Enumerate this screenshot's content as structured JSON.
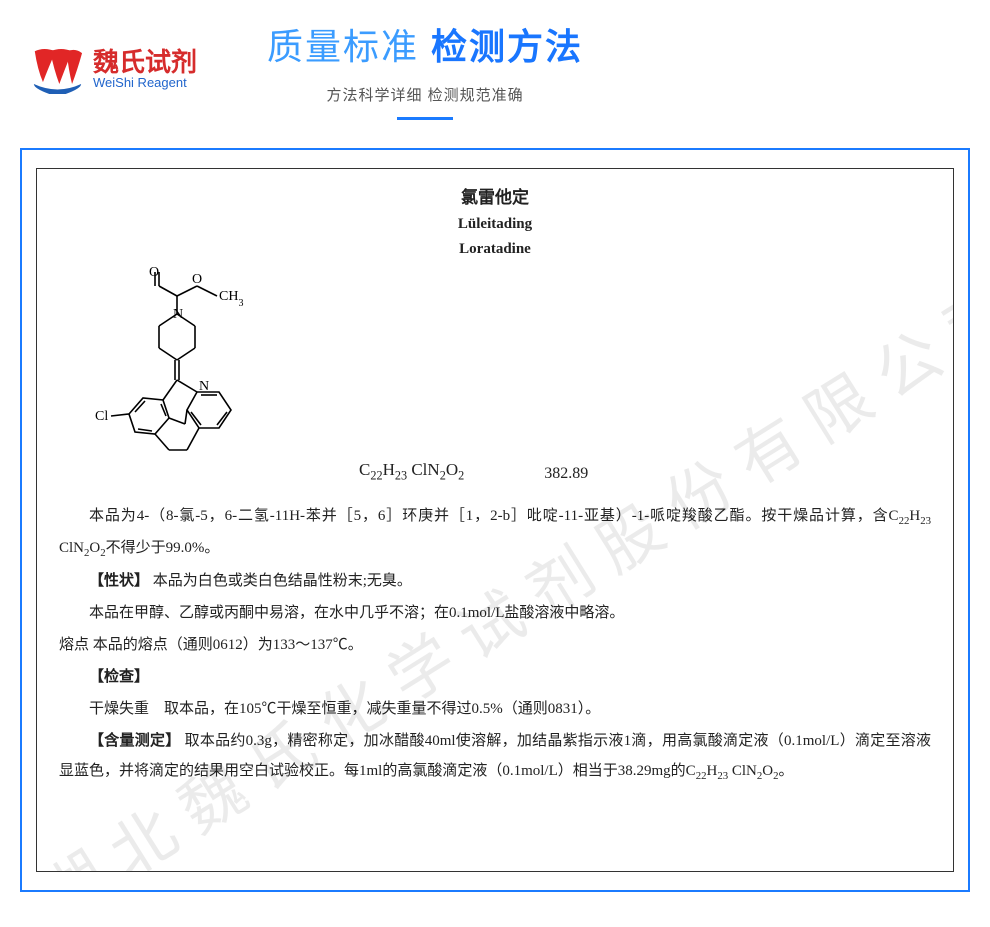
{
  "logo": {
    "cn": "魏氏试剂",
    "en": "WeiShi Reagent",
    "icon_colors": {
      "red": "#e12626",
      "blue": "#1f5fb5"
    }
  },
  "header": {
    "title_light": "质量标准",
    "title_bold": "检测方法",
    "subtitle": "方法科学详细 检测规范准确",
    "underline_color": "#1b7bff"
  },
  "frame": {
    "border_color": "#1b7bff",
    "inner_border_color": "#333333",
    "background": "#ffffff"
  },
  "watermark": "湖北魏氏化学试剂股份有限公司",
  "document": {
    "title_cn": "氯雷他定",
    "title_py": "Lüleitading",
    "title_en": "Loratadine",
    "formula_html": "C<sub>22</sub>H<sub>23</sub> ClN<sub>2</sub>O<sub>2</sub>",
    "mol_weight": "382.89",
    "intro_html": "本品为4-（8-氯-5，6-二氢-11H-苯并［5，6］环庚并［1，2-b］吡啶-11-亚基）-1-哌啶羧酸乙酯。按干燥品计算，含C<sub>22</sub>H<sub>23</sub> ClN<sub>2</sub>O<sub>2</sub>不得少于99.0%。",
    "section_character_label": "【性状】",
    "character_1": "本品为白色或类白色结晶性粉末;无臭。",
    "character_2": "本品在甲醇、乙醇或丙酮中易溶，在水中几乎不溶；在0.1mol/L盐酸溶液中略溶。",
    "character_3": "熔点 本品的熔点（通则0612）为133～137℃。",
    "section_check_label": "【检查】",
    "check_1": "干燥失重　取本品，在105℃干燥至恒重，减失重量不得过0.5%（通则0831）。",
    "section_assay_label": "【含量测定】",
    "assay_html": "取本品约0.3g，精密称定，加冰醋酸40ml使溶解，加结晶紫指示液1滴，用高氯酸滴定液（0.1mol/L）滴定至溶液显蓝色，并将滴定的结果用空白试验校正。每1ml的高氯酸滴定液（0.1mol/L）相当于38.29mg的C<sub>22</sub>H<sub>23</sub> ClN<sub>2</sub>O<sub>2</sub>。"
  },
  "typography": {
    "body_fontsize": 15,
    "title_fontsize": 36,
    "line_height": 2.0
  }
}
